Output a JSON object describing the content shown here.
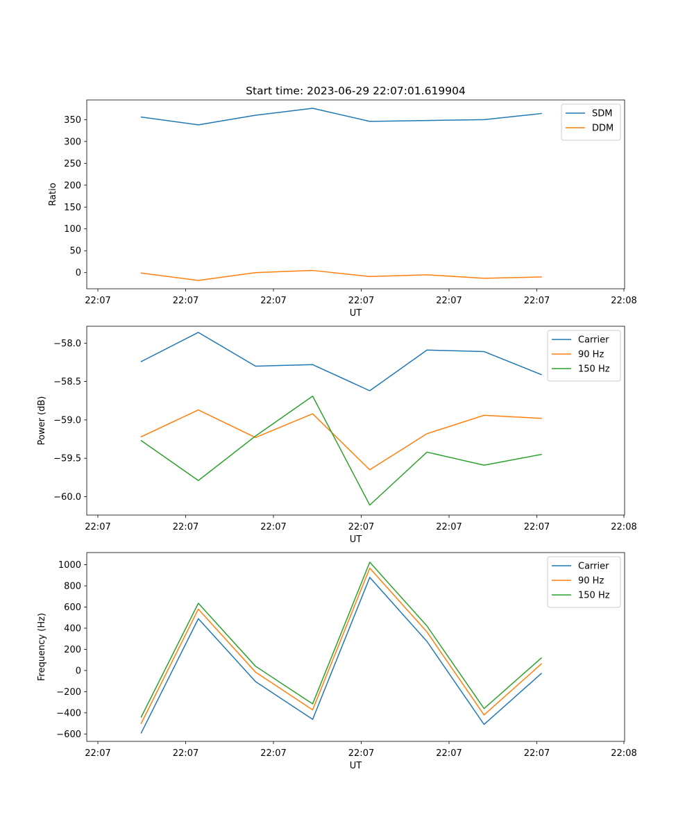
{
  "chart_data": [
    {
      "type": "line",
      "title": "Start time: 2023-06-29 22:07:01.619904",
      "xlabel": "UT",
      "ylabel": "Ratio",
      "x_tick_labels": [
        "22:07",
        "22:07",
        "22:07",
        "22:07",
        "22:07",
        "22:07",
        "22:08"
      ],
      "y_ticks": [
        0,
        50,
        100,
        150,
        200,
        250,
        300,
        350
      ],
      "ylim": [
        -37,
        395
      ],
      "legend_position": "upper right",
      "series": [
        {
          "name": "SDM",
          "color": "#1f77b4",
          "values": [
            356,
            338,
            360,
            376,
            346,
            348,
            350,
            364
          ]
        },
        {
          "name": "DDM",
          "color": "#ff7f0e",
          "values": [
            -1,
            -18,
            0,
            5,
            -9,
            -5,
            -13,
            -10
          ]
        }
      ]
    },
    {
      "type": "line",
      "title": "",
      "xlabel": "UT",
      "ylabel": "Power (dB)",
      "x_tick_labels": [
        "22:07",
        "22:07",
        "22:07",
        "22:07",
        "22:07",
        "22:07",
        "22:08"
      ],
      "y_ticks": [
        -58.0,
        -58.5,
        -59.0,
        -59.5,
        -60.0
      ],
      "y_tick_labels": [
        "−58.0",
        "−58.5",
        "−59.0",
        "−59.5",
        "−60.0"
      ],
      "ylim": [
        -60.24,
        -57.78
      ],
      "legend_position": "upper right",
      "series": [
        {
          "name": "Carrier",
          "color": "#1f77b4",
          "values": [
            -58.24,
            -57.86,
            -58.3,
            -58.28,
            -58.62,
            -58.09,
            -58.11,
            -58.41
          ]
        },
        {
          "name": "90 Hz",
          "color": "#ff7f0e",
          "values": [
            -59.22,
            -58.87,
            -59.23,
            -58.92,
            -59.65,
            -59.18,
            -58.94,
            -58.98
          ]
        },
        {
          "name": "150 Hz",
          "color": "#2ca02c",
          "values": [
            -59.27,
            -59.79,
            -59.21,
            -58.69,
            -60.11,
            -59.42,
            -59.59,
            -59.45
          ]
        }
      ]
    },
    {
      "type": "line",
      "title": "",
      "xlabel": "UT",
      "ylabel": "Frequency (Hz)",
      "x_tick_labels": [
        "22:07",
        "22:07",
        "22:07",
        "22:07",
        "22:07",
        "22:07",
        "22:08"
      ],
      "y_ticks": [
        -600,
        -400,
        -200,
        0,
        200,
        400,
        600,
        800,
        1000
      ],
      "y_tick_labels": [
        "−600",
        "−400",
        "−200",
        "0",
        "200",
        "400",
        "600",
        "800",
        "1000"
      ],
      "ylim": [
        -670,
        1115
      ],
      "legend_position": "upper right",
      "series": [
        {
          "name": "Carrier",
          "color": "#1f77b4",
          "values": [
            -590,
            490,
            -105,
            -462,
            880,
            275,
            -510,
            -28
          ]
        },
        {
          "name": "90 Hz",
          "color": "#ff7f0e",
          "values": [
            -500,
            580,
            -15,
            -372,
            968,
            365,
            -420,
            62
          ]
        },
        {
          "name": "150 Hz",
          "color": "#2ca02c",
          "values": [
            -440,
            636,
            40,
            -316,
            1024,
            421,
            -360,
            118
          ]
        }
      ]
    }
  ]
}
